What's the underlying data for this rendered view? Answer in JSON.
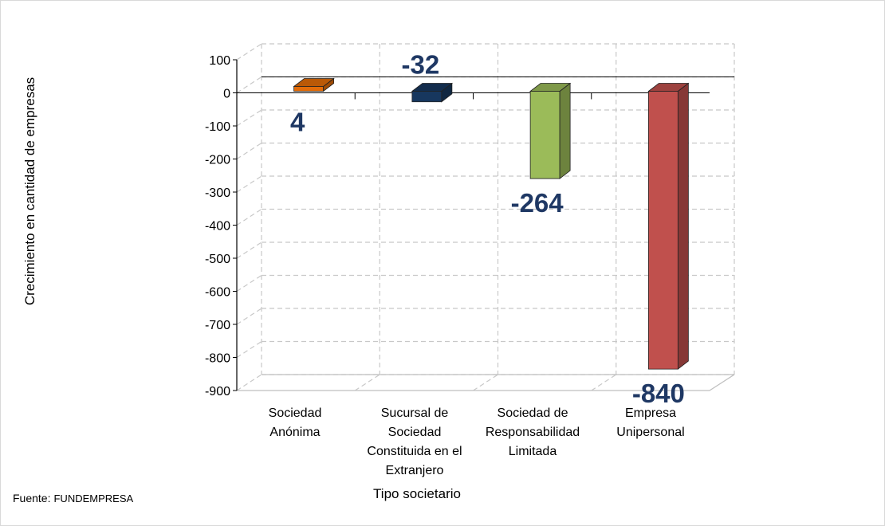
{
  "chart_data": {
    "type": "bar",
    "xlabel": "Tipo societario",
    "ylabel": "Crecimiento en cantidad de empresas",
    "categories": [
      "Sociedad\nAnónima",
      "Sucursal de\nSociedad\nConstituida en el\nExtranjero",
      "Sociedad de\nResponsabilidad\nLimitada",
      "Empresa\nUnipersonal"
    ],
    "values": [
      4,
      -32,
      -264,
      -840
    ],
    "data_labels": [
      "4",
      "-32",
      "-264",
      "-840"
    ],
    "colors": [
      "#e36c09",
      "#17375e",
      "#9bbb59",
      "#c0504d"
    ],
    "label_color": "#1f3864",
    "ylim": [
      -900,
      100
    ],
    "yticks": [
      "100",
      "0",
      "-100",
      "-200",
      "-300",
      "-400",
      "-500",
      "-600",
      "-700",
      "-800",
      "-900"
    ],
    "grid": true,
    "three_d": true
  },
  "source": {
    "label": "Fuente:",
    "name": "FUNDEMPRESA"
  }
}
